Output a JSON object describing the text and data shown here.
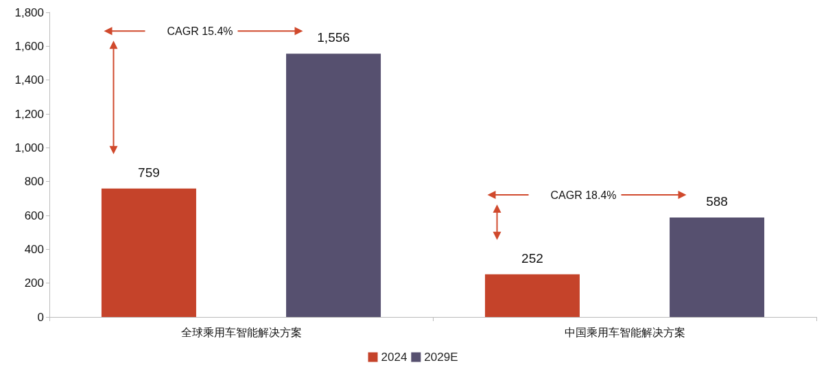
{
  "chart_data": {
    "type": "bar",
    "categories": [
      "全球乘用车智能解决方案",
      "中国乘用车智能解决方案"
    ],
    "series": [
      {
        "name": "2024",
        "color": "#c5432a",
        "values": [
          759,
          252
        ],
        "value_labels": [
          "759",
          "252"
        ]
      },
      {
        "name": "2029E",
        "color": "#56506f",
        "values": [
          1556,
          588
        ],
        "value_labels": [
          "1,556",
          "588"
        ]
      }
    ],
    "ylim": [
      0,
      1800
    ],
    "yticks": [
      0,
      {
        "value": 200,
        "label": "200"
      },
      {
        "value": 400,
        "label": "400"
      },
      {
        "value": 600,
        "label": "600"
      },
      {
        "value": 800,
        "label": "800"
      },
      {
        "value": 1000,
        "label": "1,000"
      },
      {
        "value": 1200,
        "label": "1,200"
      },
      {
        "value": 1400,
        "label": "1,400"
      },
      {
        "value": 1600,
        "label": "1,600"
      },
      {
        "value": 1800,
        "label": "1,800"
      }
    ],
    "grid": false,
    "legend": "bottom",
    "annotations": [
      "CAGR 15.4%",
      "CAGR 18.4%"
    ]
  }
}
